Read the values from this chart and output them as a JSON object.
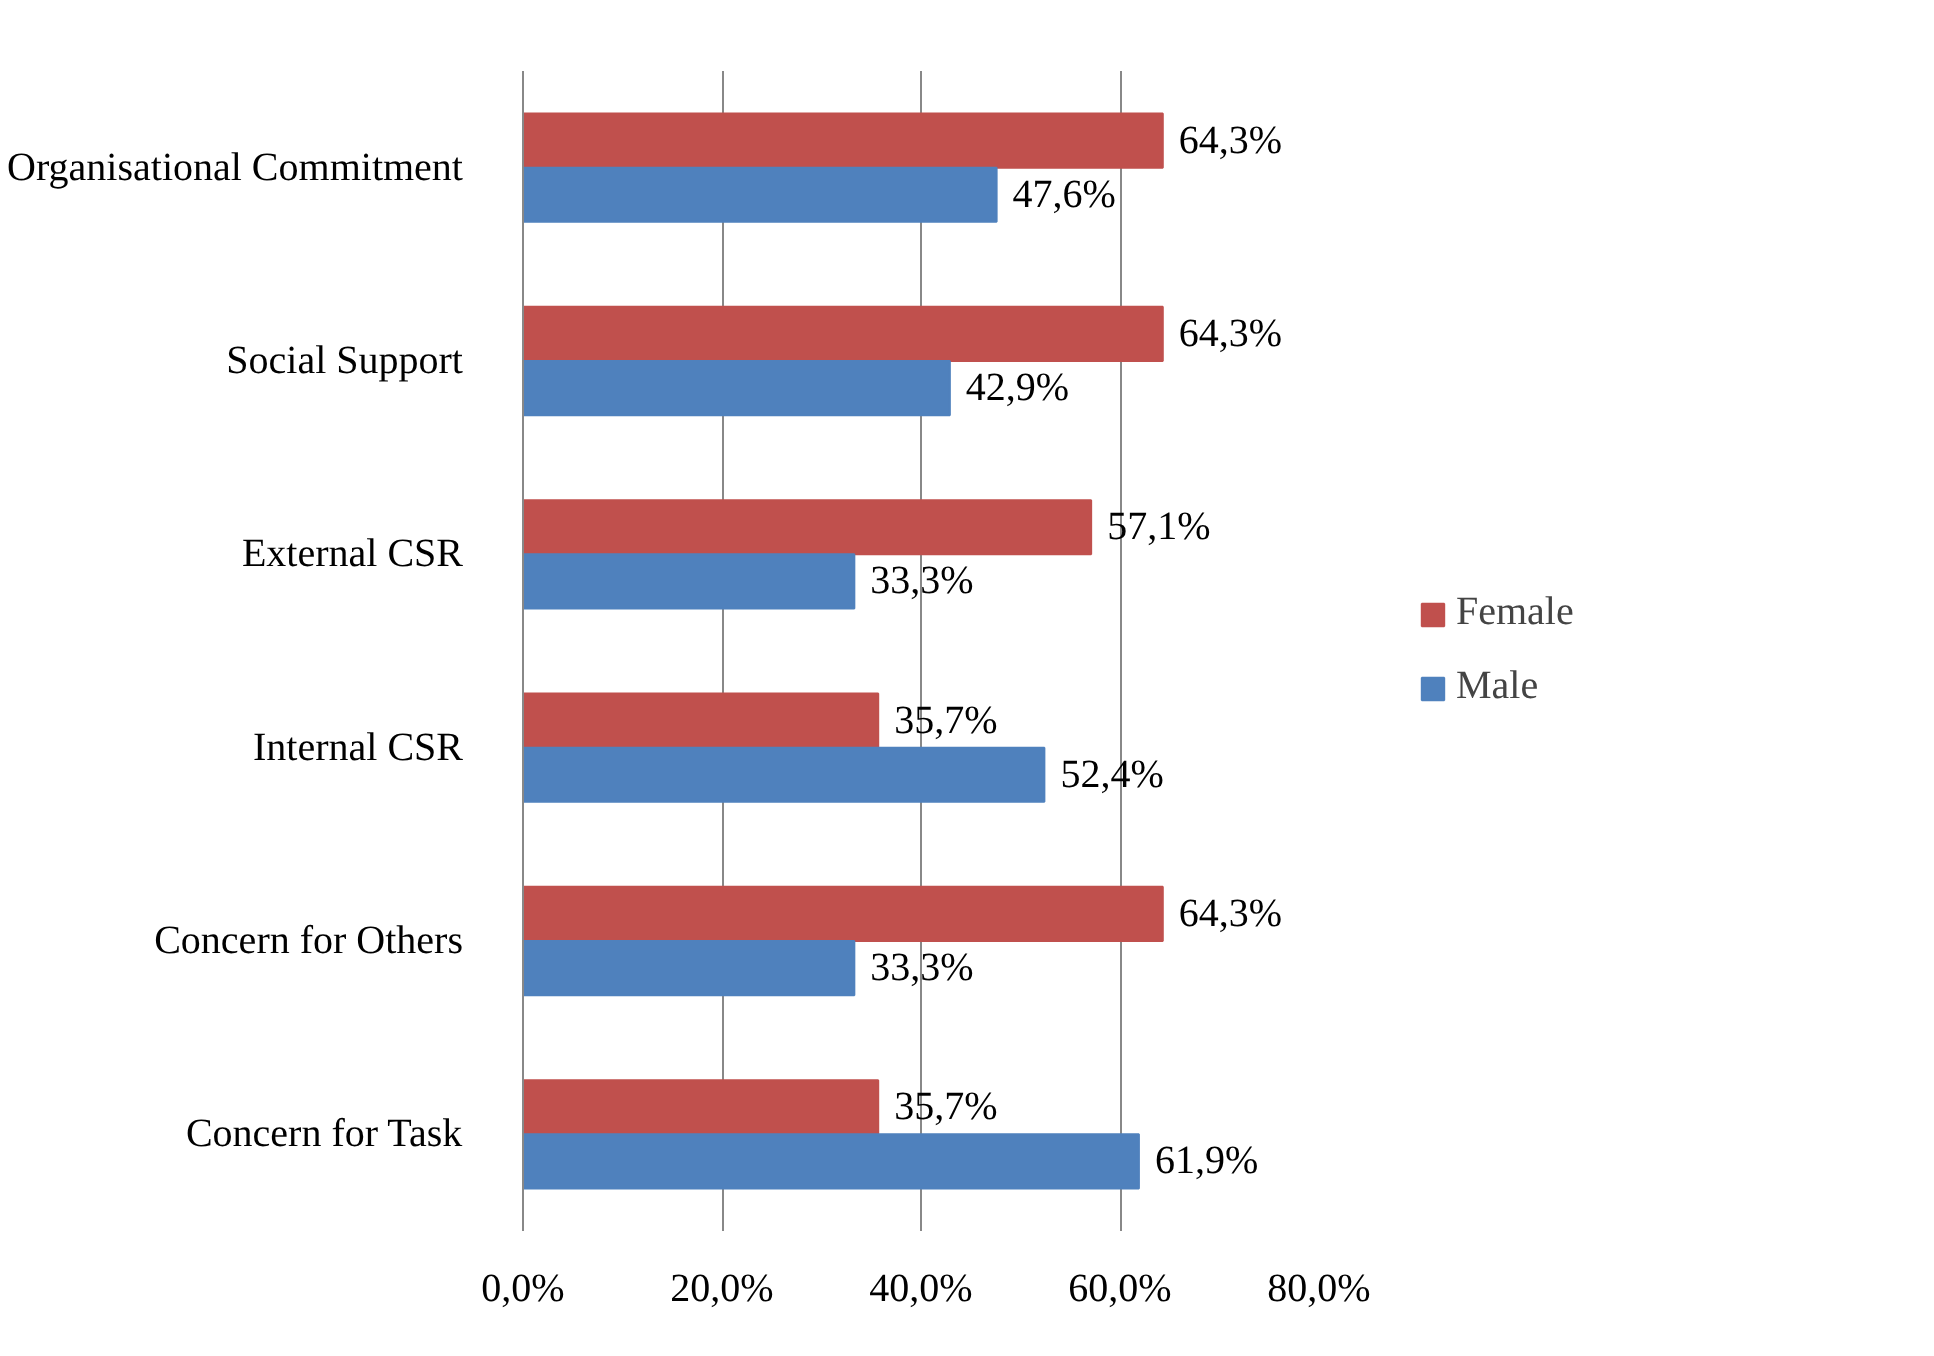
{
  "chart_data": {
    "type": "bar",
    "orientation": "horizontal",
    "categories": [
      "Organisational Commitment",
      "Social Support",
      "External CSR",
      "Internal CSR",
      "Concern for Others",
      "Concern for Task"
    ],
    "series": [
      {
        "name": "Female",
        "color": "#c0504d",
        "values": [
          64.3,
          64.3,
          57.1,
          35.7,
          64.3,
          35.7
        ],
        "value_labels": [
          "64,3%",
          "64,3%",
          "57,1%",
          "35,7%",
          "64,3%",
          "35,7%"
        ]
      },
      {
        "name": "Male",
        "color": "#4f81bd",
        "values": [
          47.6,
          42.9,
          33.3,
          52.4,
          33.3,
          61.9
        ],
        "value_labels": [
          "47,6%",
          "42,9%",
          "33,3%",
          "52,4%",
          "33,3%",
          "61,9%"
        ]
      }
    ],
    "xlim": [
      0,
      80
    ],
    "xticks": [
      {
        "value": 0,
        "label": "0,0%"
      },
      {
        "value": 20,
        "label": "20,0%"
      },
      {
        "value": 40,
        "label": "40,0%"
      },
      {
        "value": 60,
        "label": "60,0%"
      },
      {
        "value": 80,
        "label": "80,0%"
      }
    ],
    "grid": "x",
    "legend": "right"
  }
}
